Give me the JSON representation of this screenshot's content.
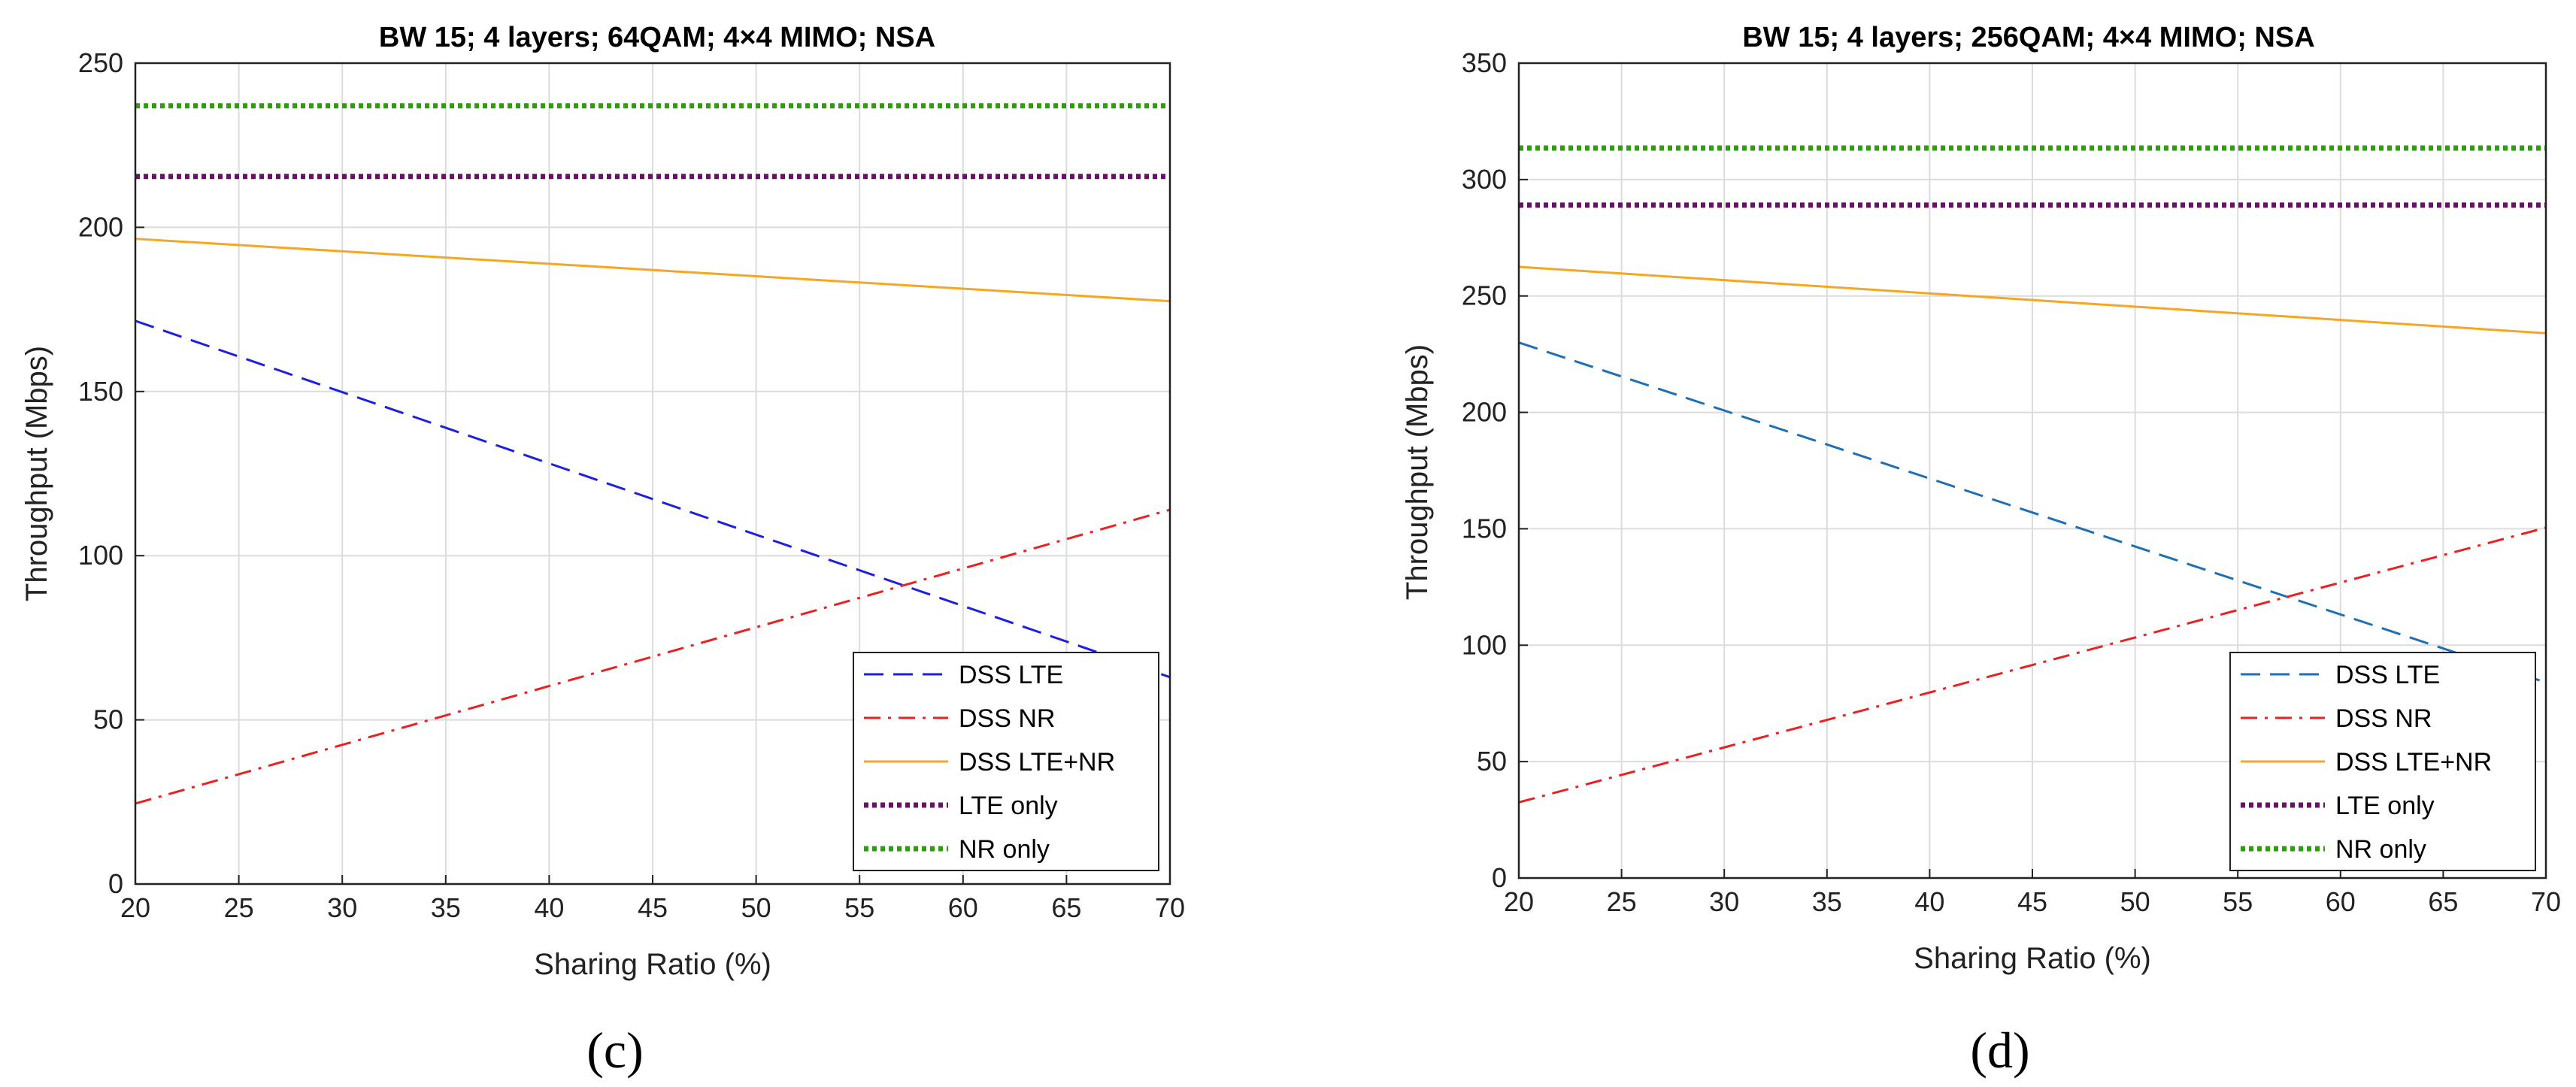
{
  "chart_data": [
    {
      "type": "line",
      "panel_label": "(c)",
      "title": "BW 15; 4 layers; 64QAM; 4×4 MIMO; NSA",
      "xlabel": "Sharing Ratio (%)",
      "ylabel": "Throughput (Mbps)",
      "xlim": [
        20,
        70
      ],
      "ylim": [
        0,
        250
      ],
      "xticks": [
        20,
        25,
        30,
        35,
        40,
        45,
        50,
        55,
        60,
        65,
        70
      ],
      "yticks": [
        0,
        50,
        100,
        150,
        200,
        250
      ],
      "grid": true,
      "legend_position": "bottom-right",
      "series": [
        {
          "name": "DSS LTE",
          "style": "dashed",
          "color": "#1f1fe0",
          "x": [
            20,
            70
          ],
          "y": [
            171.5,
            63
          ]
        },
        {
          "name": "DSS NR",
          "style": "dashdot",
          "color": "#e82222",
          "x": [
            20,
            70
          ],
          "y": [
            24.5,
            114
          ]
        },
        {
          "name": "DSS LTE+NR",
          "style": "solid",
          "color": "#f5a623",
          "x": [
            20,
            70
          ],
          "y": [
            196.5,
            177.5
          ]
        },
        {
          "name": "LTE only",
          "style": "dotted",
          "color": "#6a0f6a",
          "x": [
            20,
            70
          ],
          "y": [
            215.5,
            215.5
          ]
        },
        {
          "name": "NR only",
          "style": "dotted",
          "color": "#2e9e0e",
          "x": [
            20,
            70
          ],
          "y": [
            237,
            237
          ]
        }
      ]
    },
    {
      "type": "line",
      "panel_label": "(d)",
      "title": "BW 15; 4 layers; 256QAM; 4×4 MIMO; NSA",
      "xlabel": "Sharing Ratio (%)",
      "ylabel": "Throughput (Mbps)",
      "xlim": [
        20,
        70
      ],
      "ylim": [
        0,
        350
      ],
      "xticks": [
        20,
        25,
        30,
        35,
        40,
        45,
        50,
        55,
        60,
        65,
        70
      ],
      "yticks": [
        0,
        50,
        100,
        150,
        200,
        250,
        300,
        350
      ],
      "grid": true,
      "legend_position": "bottom-right",
      "series": [
        {
          "name": "DSS LTE",
          "style": "dashed",
          "color": "#1f6fb5",
          "x": [
            20,
            70
          ],
          "y": [
            230,
            84
          ]
        },
        {
          "name": "DSS NR",
          "style": "dashdot",
          "color": "#e82222",
          "x": [
            20,
            70
          ],
          "y": [
            32.5,
            150.5
          ]
        },
        {
          "name": "DSS LTE+NR",
          "style": "solid",
          "color": "#f5a623",
          "x": [
            20,
            70
          ],
          "y": [
            262.5,
            234
          ]
        },
        {
          "name": "LTE only",
          "style": "dotted",
          "color": "#6a0f6a",
          "x": [
            20,
            70
          ],
          "y": [
            289,
            289
          ]
        },
        {
          "name": "NR only",
          "style": "dotted",
          "color": "#2e9e0e",
          "x": [
            20,
            70
          ],
          "y": [
            313.5,
            313.5
          ]
        }
      ]
    }
  ]
}
